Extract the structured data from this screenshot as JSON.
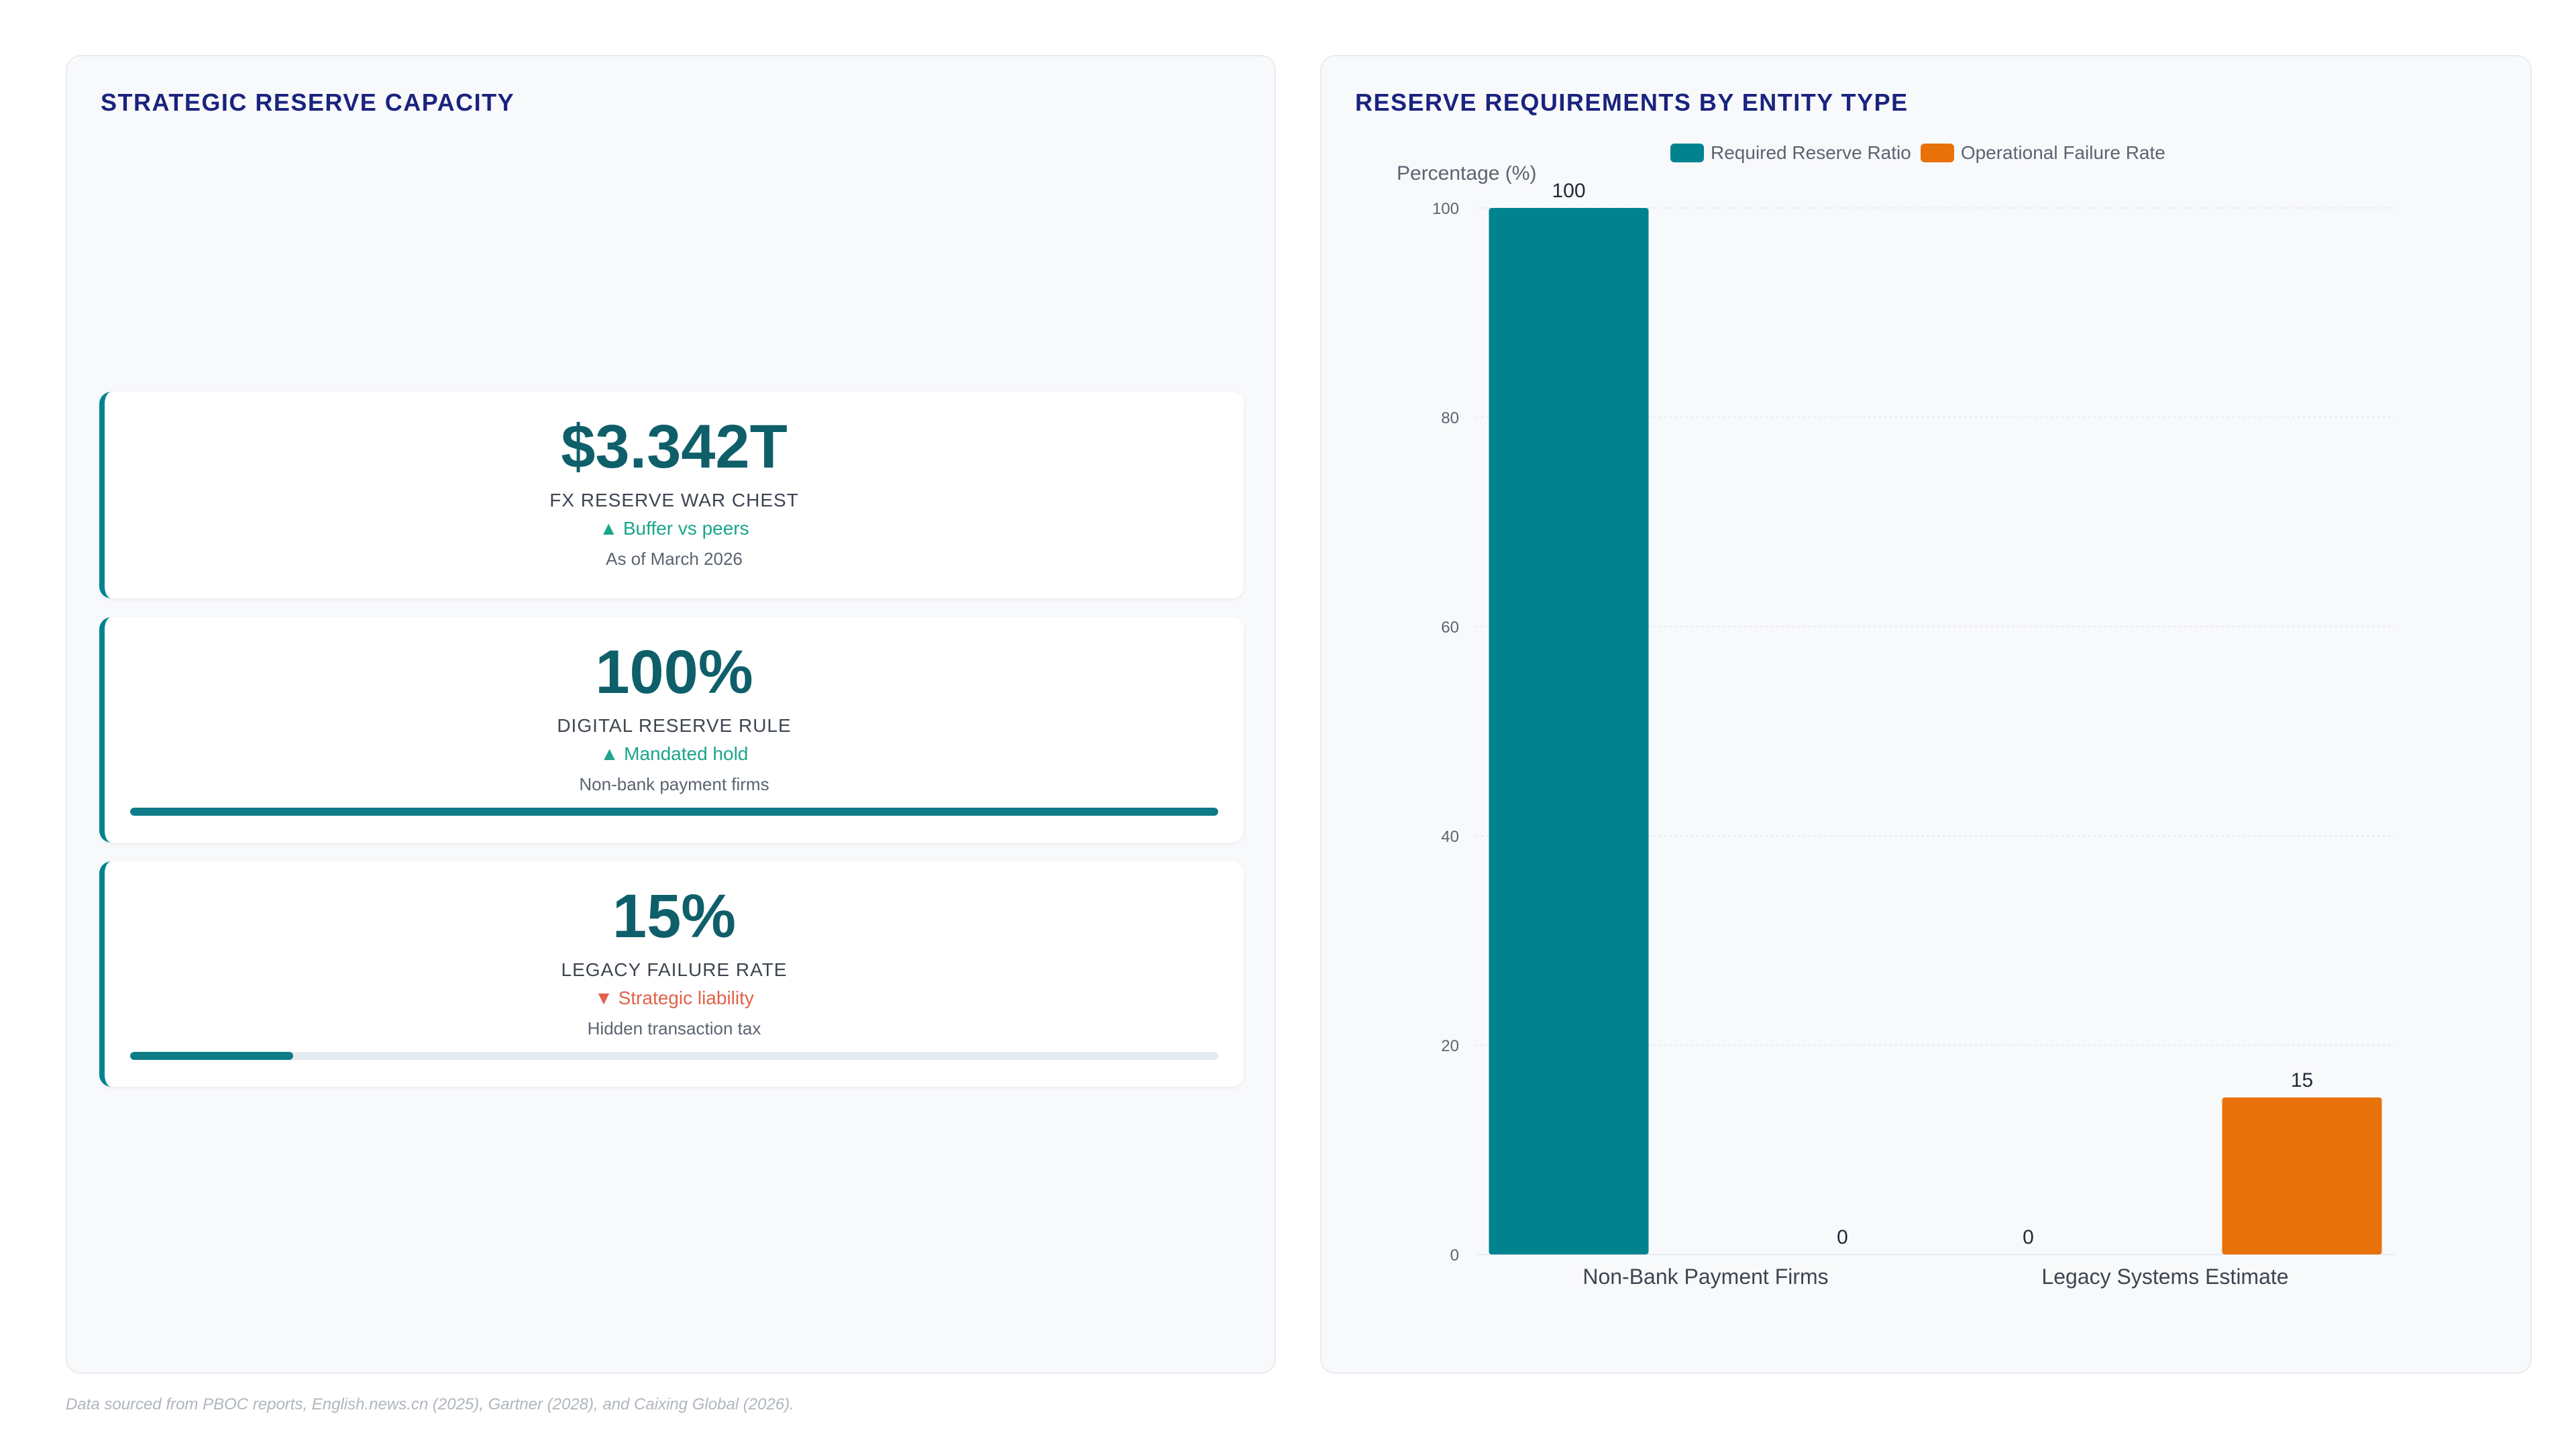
{
  "left_panel": {
    "title": "STRATEGIC RESERVE CAPACITY",
    "cards": [
      {
        "value": "$3.342T",
        "label": "FX RESERVE WAR CHEST",
        "trend": "▲ Buffer vs peers",
        "trend_direction": "up",
        "note": "As of March 2026"
      },
      {
        "value": "100%",
        "label": "DIGITAL RESERVE RULE",
        "trend": "▲ Mandated hold",
        "trend_direction": "up",
        "note": "Non-bank payment firms",
        "progress": 1.0
      },
      {
        "value": "15%",
        "label": "LEGACY FAILURE RATE",
        "trend": "▼ Strategic liability",
        "trend_direction": "down",
        "note": "Hidden transaction tax",
        "progress": 0.15
      }
    ]
  },
  "right_panel": {
    "title": "RESERVE REQUIREMENTS BY ENTITY TYPE"
  },
  "chart_data": {
    "type": "bar",
    "title": "RESERVE REQUIREMENTS BY ENTITY TYPE",
    "categories": [
      "Non-Bank Payment Firms",
      "Legacy Systems Estimate"
    ],
    "series": [
      {
        "name": "Required Reserve Ratio",
        "values": [
          100,
          0
        ],
        "color": "#00838f"
      },
      {
        "name": "Operational Failure Rate",
        "values": [
          0,
          15
        ],
        "color": "#e8710a"
      }
    ],
    "ylabel": "Percentage (%)",
    "xlabel": "",
    "ylim": [
      0,
      100
    ],
    "yticks": [
      0,
      20,
      40,
      60,
      80,
      100
    ],
    "grid": true,
    "legend_position": "top"
  },
  "footer": {
    "note": "Data sourced from PBOC reports, English.news.cn (2025), Gartner (2028), and Caixing Global (2026)."
  },
  "colors": {
    "accent": "#00838f",
    "warning": "#e8710a",
    "title": "#1a237e",
    "kpi_value": "#0e5f6a"
  }
}
